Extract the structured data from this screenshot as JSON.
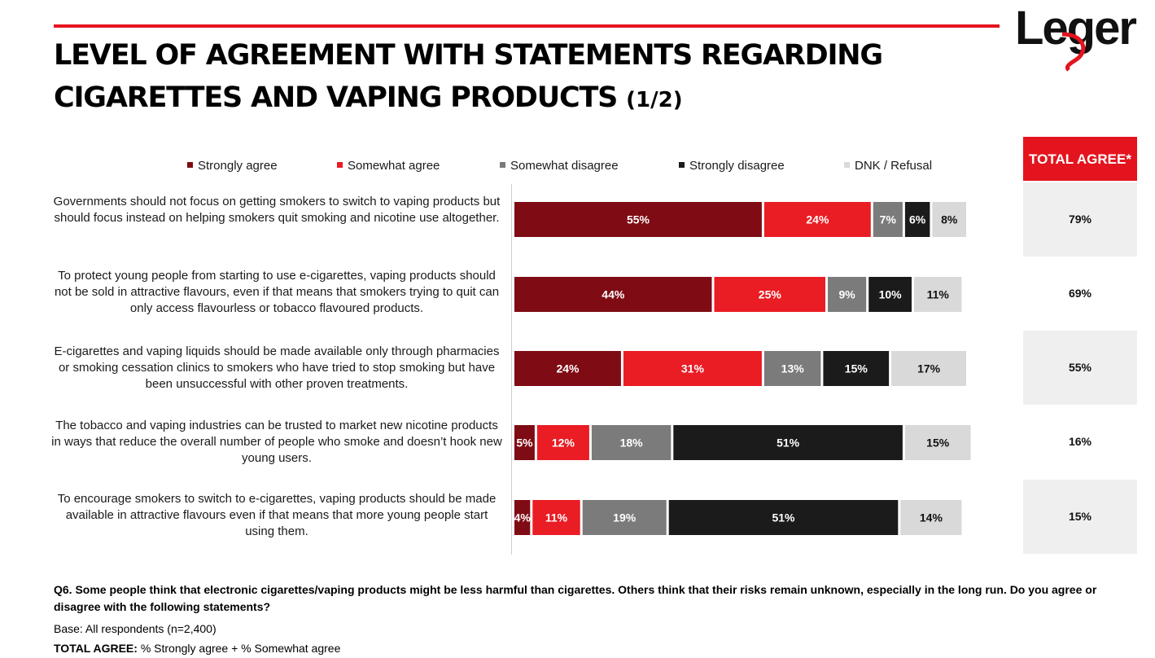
{
  "header": {
    "title_line1": "LEVEL OF AGREEMENT WITH STATEMENTS REGARDING",
    "title_line2": "CIGARETTES AND VAPING PRODUCTS",
    "title_suffix": "(1/2)",
    "logo_text": "Leger",
    "accent_color": "#e4141e"
  },
  "total_agree": {
    "header": "TOTAL AGREE*",
    "values": [
      "79%",
      "69%",
      "55%",
      "16%",
      "15%"
    ]
  },
  "chart_data": {
    "type": "bar",
    "orientation": "horizontal",
    "stacked": true,
    "categories": [
      "Governments should not focus on getting smokers to switch to vaping products but should focus instead on helping smokers quit smoking and nicotine use altogether.",
      "To protect young people from starting to use e-cigarettes, vaping products should not be sold in attractive flavours, even if that means that smokers trying to quit can only access flavourless or tobacco flavoured products.",
      "E-cigarettes and vaping liquids should be made available only through pharmacies or smoking cessation clinics to smokers who have tried to stop smoking but have been unsuccessful with other proven treatments.",
      "The tobacco and vaping industries can be trusted to market new nicotine products in ways that reduce the overall number of people who smoke and doesn’t hook new young users.",
      "To encourage smokers to switch to e-cigarettes, vaping products should be made available in attractive flavours even if that means that more young people start using them."
    ],
    "series": [
      {
        "name": "Strongly agree",
        "color": "#7f0b14",
        "values": [
          55,
          44,
          24,
          5,
          4
        ]
      },
      {
        "name": "Somewhat agree",
        "color": "#ea1c24",
        "values": [
          24,
          25,
          31,
          12,
          11
        ]
      },
      {
        "name": "Somewhat disagree",
        "color": "#7b7b7b",
        "values": [
          7,
          9,
          13,
          18,
          19
        ]
      },
      {
        "name": "Strongly disagree",
        "color": "#1b1b1b",
        "values": [
          6,
          10,
          15,
          51,
          51
        ]
      },
      {
        "name": "DNK / Refusal",
        "color": "#d9d9d9",
        "values": [
          8,
          11,
          17,
          15,
          14
        ]
      }
    ],
    "unit": "%",
    "xlim": [
      0,
      100
    ],
    "legend_position": "top",
    "grid": false
  },
  "footnotes": {
    "question": "Q6. Some people think that electronic cigarettes/vaping products might be less harmful than cigarettes. Others think that their risks remain unknown, especially in the long run. Do you agree or disagree with the following statements?",
    "base": "Base: All respondents (n=2,400)",
    "definition_label": "TOTAL AGREE:",
    "definition_text": " % Strongly agree + % Somewhat agree"
  }
}
